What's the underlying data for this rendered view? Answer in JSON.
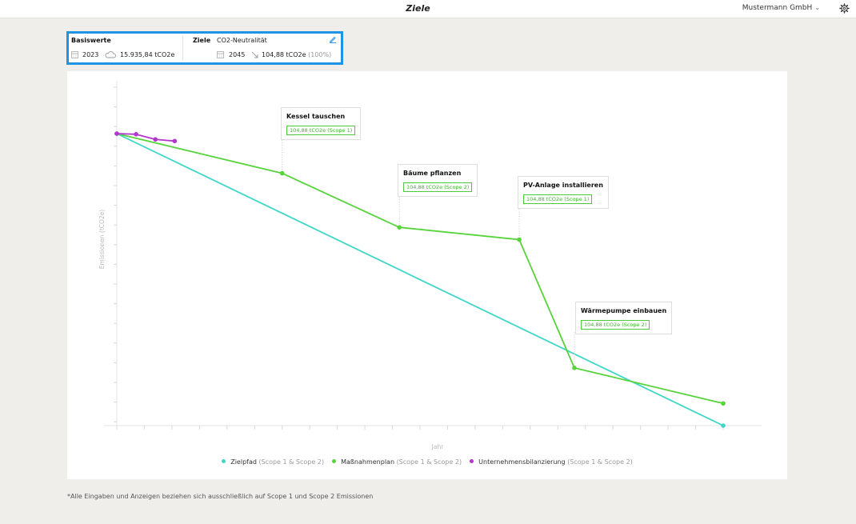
{
  "header": {
    "title": "Ziele",
    "company": "Mustermann GmbH"
  },
  "targets": {
    "baseline_label": "Basiswerte",
    "baseline_year": "2023",
    "baseline_value": "15.935,84 tCO2e",
    "goals_label": "Ziele",
    "goal_name": "CO2-Neutralität",
    "goal_year": "2045",
    "goal_value": "104,88 tCO2e",
    "goal_percent": "(100%)"
  },
  "chart_data": {
    "type": "line",
    "xlabel": "Jahr",
    "ylabel": "Emissionen (tCO2e)",
    "x_range": [
      2023,
      2045
    ],
    "y_range": [
      0,
      15935.84
    ],
    "series": [
      {
        "name": "Zielpfad",
        "scope": "(Scope 1 & Scope 2)",
        "color": "#3fd6c8",
        "points": [
          [
            2023,
            15935.84
          ],
          [
            2045,
            0
          ]
        ]
      },
      {
        "name": "Maßnahmenplan",
        "scope": "(Scope 1 & Scope 2)",
        "color": "#57d33b",
        "points": [
          [
            2023,
            15935.84
          ],
          [
            2029,
            13770
          ],
          [
            2033.25,
            10820
          ],
          [
            2037.6,
            10150
          ],
          [
            2039.6,
            3150
          ],
          [
            2045,
            1210
          ]
        ]
      },
      {
        "name": "Unternehmensbilanzierung",
        "scope": "(Scope 1 & Scope 2)",
        "color": "#b535cf",
        "points": [
          [
            2023,
            15935.84
          ],
          [
            2023.7,
            15900
          ],
          [
            2024.4,
            15620
          ],
          [
            2025.1,
            15530
          ]
        ]
      }
    ],
    "annotations": [
      {
        "title": "Kessel tauschen",
        "value": "104,88 tCO2e (Scope 1)",
        "at": [
          2029,
          13770
        ]
      },
      {
        "title": "Bäume pflanzen",
        "value": "104,88 tCO2e (Scope 2)",
        "at": [
          2033.25,
          10820
        ]
      },
      {
        "title": "PV-Anlage installieren",
        "value": "104,88 tCO2e (Scope 1)",
        "at": [
          2037.6,
          10150
        ]
      },
      {
        "title": "Wärmepumpe einbauen",
        "value": "104,88 tCO2e (Scope 2)",
        "at": [
          2039.6,
          3150
        ]
      }
    ]
  },
  "footnote": "*Alle Eingaben und Anzeigen beziehen sich ausschließlich auf Scope 1 und Scope 2 Emissionen"
}
